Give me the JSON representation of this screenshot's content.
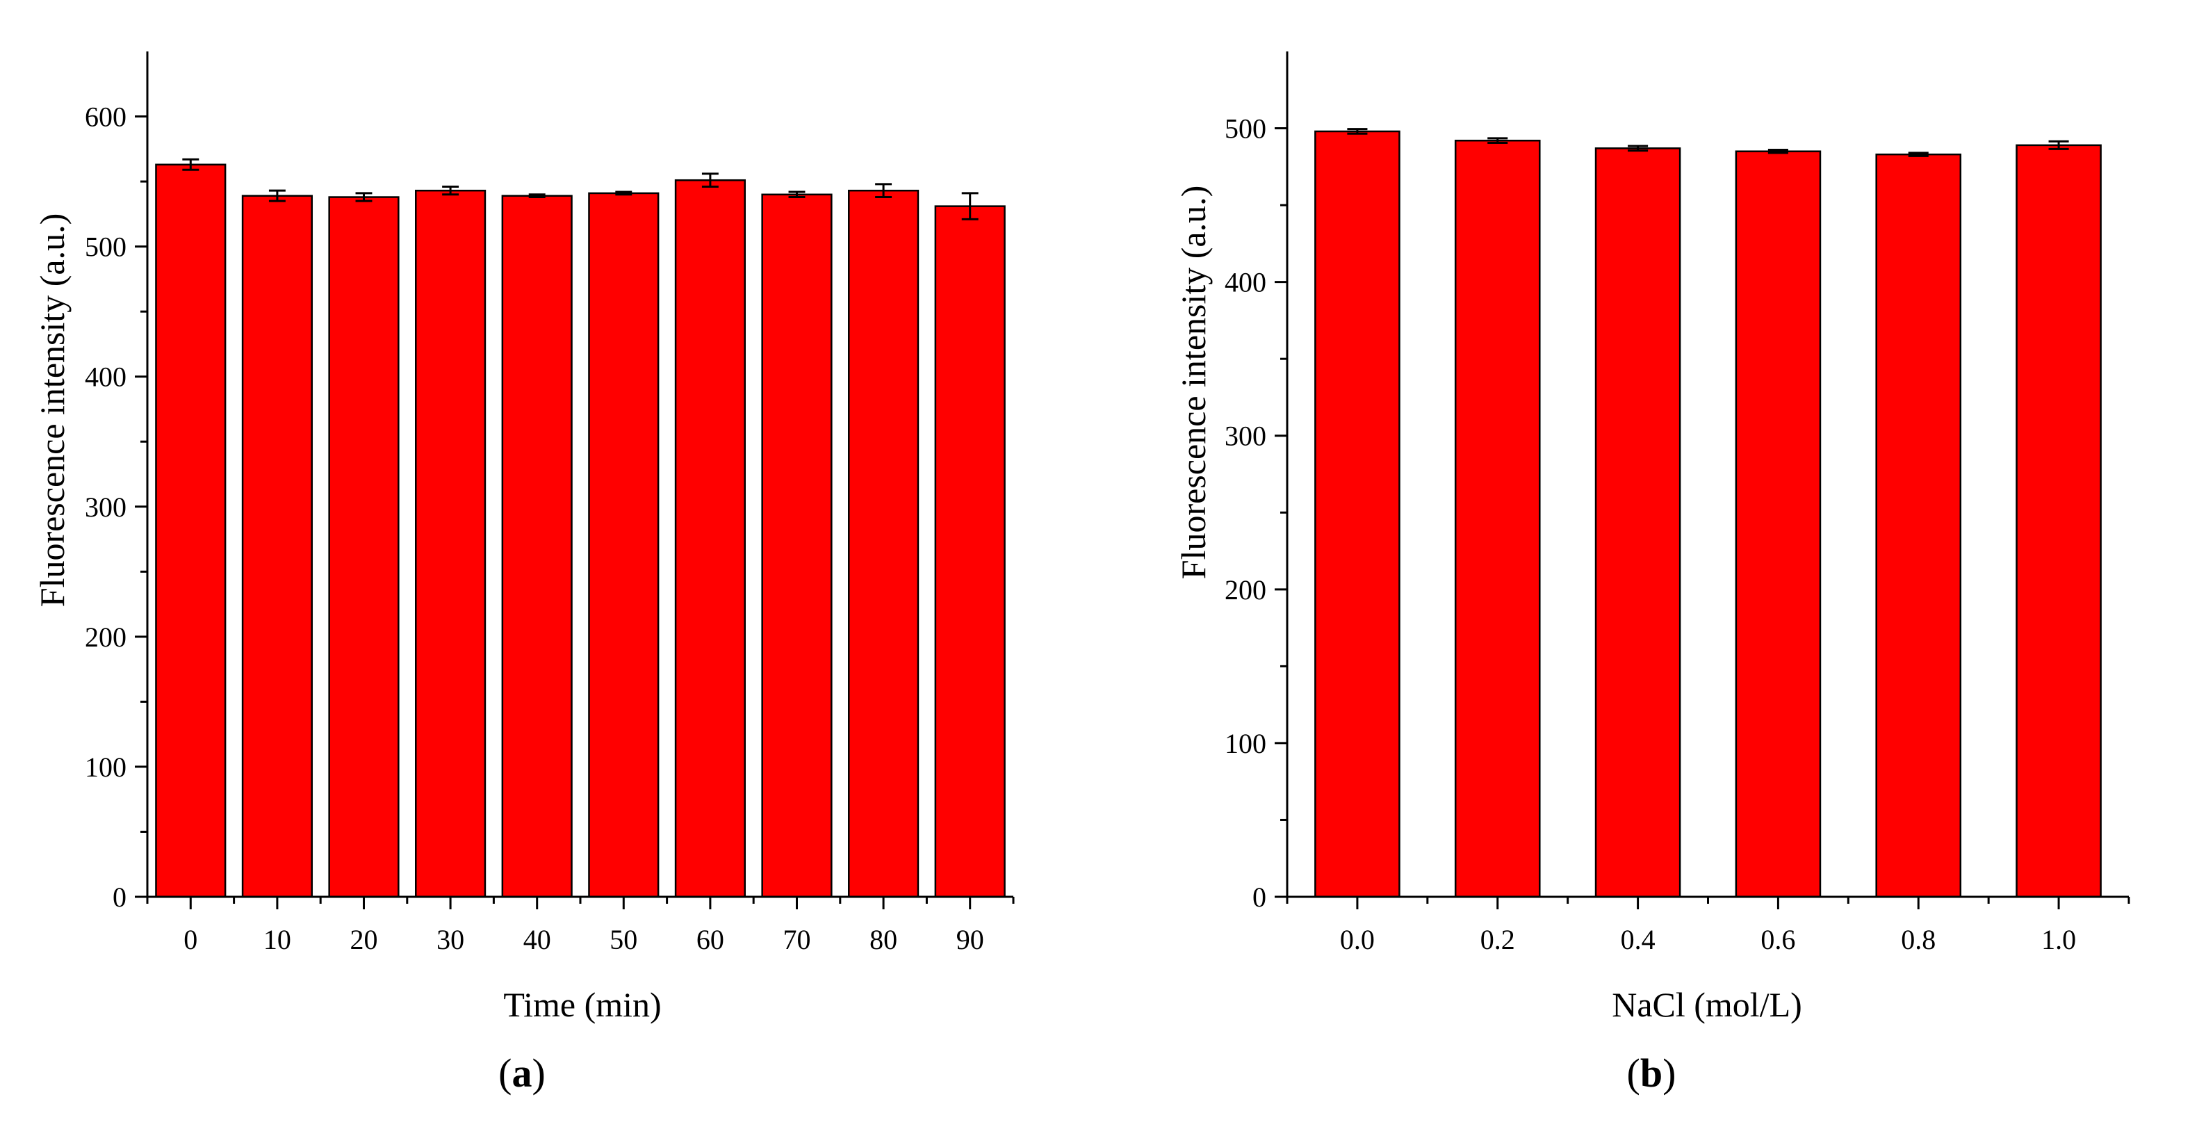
{
  "chart_data": [
    {
      "type": "bar",
      "panel_label": "a",
      "categories": [
        "0",
        "10",
        "20",
        "30",
        "40",
        "50",
        "60",
        "70",
        "80",
        "90"
      ],
      "values": [
        563,
        539,
        538,
        543,
        539,
        541,
        551,
        540,
        543,
        531
      ],
      "errors": [
        4,
        4,
        3,
        3,
        1,
        1,
        5,
        2,
        5,
        10
      ],
      "xlabel": "Time (min)",
      "ylabel": "Fluorescence intensity (a.u.)",
      "ylim": [
        0,
        650
      ],
      "yticks": [
        0,
        100,
        200,
        300,
        400,
        500,
        600
      ],
      "bar_color": "#ff0000"
    },
    {
      "type": "bar",
      "panel_label": "b",
      "categories": [
        "0.0",
        "0.2",
        "0.4",
        "0.6",
        "0.8",
        "1.0"
      ],
      "values": [
        498,
        492,
        487,
        485,
        483,
        489
      ],
      "errors": [
        1.5,
        1.5,
        1.5,
        1,
        1,
        2.5
      ],
      "xlabel": "NaCl (mol/L)",
      "ylabel": "Fluorescence intensity (a.u.)",
      "ylim": [
        0,
        550
      ],
      "yticks": [
        0,
        100,
        200,
        300,
        400,
        500
      ],
      "bar_color": "#ff0000"
    }
  ]
}
